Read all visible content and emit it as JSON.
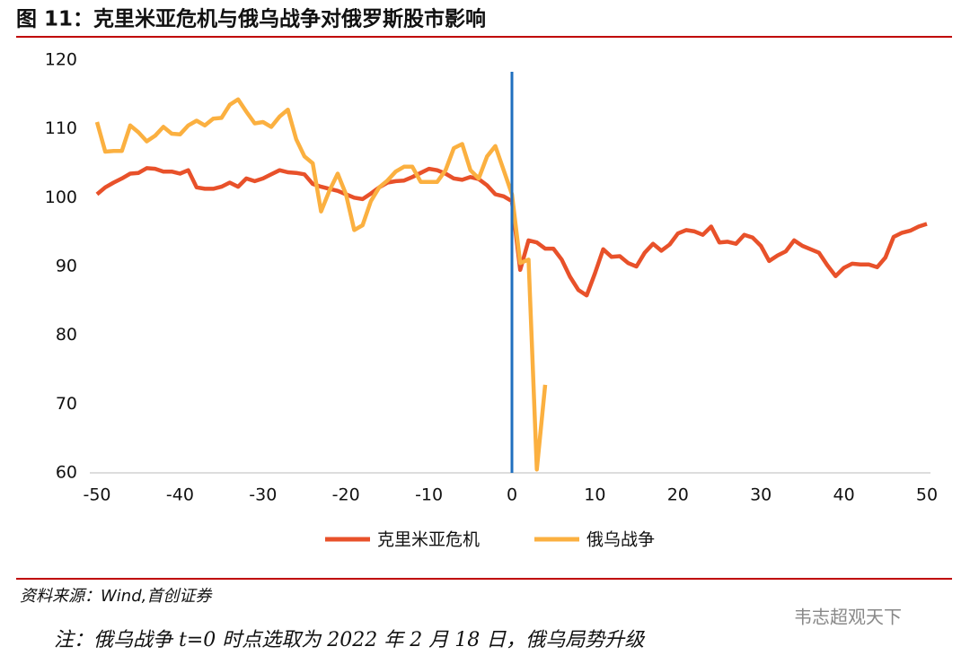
{
  "chart_data": {
    "type": "line",
    "title": "图 11：克里米亚危机与俄乌战争对俄罗斯股市影响",
    "source": "资料来源：Wind,首创证券",
    "note": "注：俄乌战争 t=0 时点选取为 2022 年 2 月 18 日，俄乌局势升级",
    "watermark": "韦志超观天下",
    "x": [
      -50,
      -49,
      -48,
      -47,
      -46,
      -45,
      -44,
      -43,
      -42,
      -41,
      -40,
      -39,
      -38,
      -37,
      -36,
      -35,
      -34,
      -33,
      -32,
      -31,
      -30,
      -29,
      -28,
      -27,
      -26,
      -25,
      -24,
      -23,
      -22,
      -21,
      -20,
      -19,
      -18,
      -17,
      -16,
      -15,
      -14,
      -13,
      -12,
      -11,
      -10,
      -9,
      -8,
      -7,
      -6,
      -5,
      -4,
      -3,
      -2,
      -1,
      0,
      1,
      2,
      3,
      4,
      5,
      6,
      7,
      8,
      9,
      10,
      11,
      12,
      13,
      14,
      15,
      16,
      17,
      18,
      19,
      20,
      21,
      22,
      23,
      24,
      25,
      26,
      27,
      28,
      29,
      30,
      31,
      32,
      33,
      34,
      35,
      36,
      37,
      38,
      39,
      40,
      41,
      42,
      43,
      44,
      45,
      46,
      47,
      48,
      49,
      50
    ],
    "series": [
      {
        "name": "克里米亚危机",
        "color": "#e8512a",
        "values": [
          100.5,
          101.5,
          102.2,
          102.8,
          103.5,
          103.6,
          104.3,
          104.2,
          103.8,
          103.8,
          103.5,
          104,
          101.5,
          101.3,
          101.3,
          101.6,
          102.2,
          101.6,
          102.8,
          102.4,
          102.8,
          103.4,
          104,
          103.7,
          103.6,
          103.4,
          102,
          101.6,
          101.3,
          101,
          100.5,
          100,
          99.8,
          100.6,
          101.5,
          102.2,
          102.4,
          102.5,
          103,
          103.6,
          104.2,
          104,
          103.5,
          102.8,
          102.6,
          103,
          102.7,
          101.8,
          100.5,
          100.2,
          99.5,
          89.5,
          93.8,
          93.5,
          92.6,
          92.6,
          91,
          88.5,
          86.6,
          85.8,
          89,
          92.5,
          91.4,
          91.5,
          90.5,
          90,
          92,
          93.3,
          92.3,
          93.2,
          94.8,
          95.3,
          95.1,
          94.6,
          95.8,
          93.5,
          93.6,
          93.3,
          94.6,
          94.2,
          93,
          90.8,
          91.6,
          92.2,
          93.8,
          93,
          92.5,
          92,
          90.2,
          88.6,
          89.8,
          90.4,
          90.3,
          90.3,
          89.9,
          91.3,
          94.3,
          94.9,
          95.2,
          95.8,
          96.2
        ]
      },
      {
        "name": "俄乌战争",
        "color": "#fbb040",
        "values": [
          111,
          106.7,
          106.8,
          106.8,
          110.5,
          109.5,
          108.2,
          109,
          110.3,
          109.3,
          109.2,
          110.5,
          111.2,
          110.5,
          111.5,
          111.6,
          113.5,
          114.3,
          112.5,
          110.8,
          111,
          110.3,
          111.8,
          112.8,
          108.5,
          106,
          105,
          98,
          101,
          103.5,
          100.5,
          95.3,
          96,
          99.5,
          101.5,
          102.5,
          103.8,
          104.5,
          104.5,
          102.3,
          102.3,
          102.3,
          104,
          107.2,
          107.8,
          104,
          102.8,
          106,
          107.5,
          104,
          100.5,
          90.5,
          91,
          60.5,
          72.8,
          null,
          null,
          null,
          null,
          null,
          null,
          null,
          null,
          null,
          null,
          null,
          null,
          null,
          null,
          null,
          null,
          null,
          null,
          null,
          null,
          null,
          null,
          null,
          null,
          null,
          null,
          null,
          null,
          null,
          null,
          null,
          null,
          null,
          null,
          null,
          null,
          null,
          null,
          null,
          null,
          null,
          null,
          null,
          null,
          null,
          null
        ]
      }
    ],
    "vline_x": 0,
    "vline_color": "#1f6fbf",
    "xlim": [
      -50,
      50
    ],
    "xticks": [
      -50,
      -40,
      -30,
      -20,
      -10,
      0,
      10,
      20,
      30,
      40,
      50
    ],
    "ylim": [
      60,
      120
    ],
    "yticks": [
      60,
      70,
      80,
      90,
      100,
      110,
      120
    ],
    "legend": "bottom"
  }
}
